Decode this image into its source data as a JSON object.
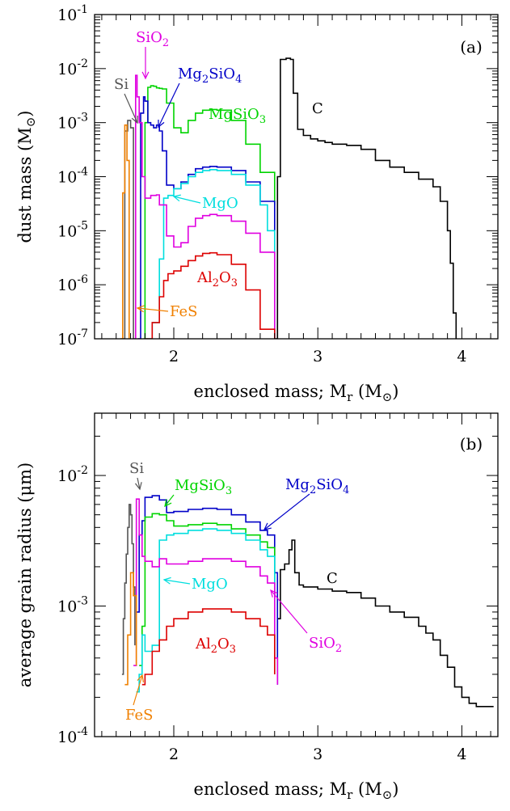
{
  "colors": {
    "Si": "#555555",
    "SiO2": "#e000e0",
    "Mg2SiO4": "#0000c8",
    "MgSiO3": "#00d400",
    "MgO": "#00dede",
    "Al2O3": "#dd0000",
    "FeS": "#f08000",
    "C": "#000000"
  },
  "chart_data": [
    {
      "type": "line",
      "panel_tag": "(a)",
      "xlabel": "enclosed mass; M_r (M_⊙)",
      "ylabel": "dust mass (M_⊙)",
      "xlim": [
        1.45,
        4.25
      ],
      "ylim": [
        1e-07,
        0.1
      ],
      "y_scale": "log",
      "x_ticks": [
        "2",
        "3",
        "4"
      ],
      "y_ticks": [
        "10^-7",
        "10^-6",
        "10^-5",
        "10^-4",
        "10^-3",
        "10^-2",
        "10^-1"
      ],
      "series": [
        {
          "name": "C",
          "x": [
            2.7,
            2.72,
            2.74,
            2.78,
            2.81,
            2.83,
            2.86,
            2.9,
            2.95,
            3.0,
            3.05,
            3.1,
            3.2,
            3.3,
            3.4,
            3.5,
            3.6,
            3.7,
            3.8,
            3.85,
            3.9,
            3.92,
            3.94,
            3.96
          ],
          "y": [
            1e-07,
            0.0001,
            0.0148,
            0.0155,
            0.0148,
            0.0035,
            0.00075,
            0.00058,
            0.0005,
            0.00046,
            0.00043,
            0.0004,
            0.00038,
            0.00032,
            0.0002,
            0.00015,
            0.00012,
            9e-05,
            6.5e-05,
            3.5e-05,
            1e-05,
            2.5e-06,
            3e-07,
            1e-07
          ]
        },
        {
          "name": "MgSiO3",
          "x": [
            1.79,
            1.8,
            1.82,
            1.84,
            1.86,
            1.88,
            1.9,
            1.92,
            1.95,
            2.0,
            2.05,
            2.1,
            2.15,
            2.2,
            2.25,
            2.3,
            2.4,
            2.5,
            2.6,
            2.7
          ],
          "y": [
            1e-07,
            0.001,
            0.0045,
            0.0048,
            0.0047,
            0.0044,
            0.0043,
            0.0042,
            0.0023,
            0.0008,
            0.00065,
            0.0011,
            0.0015,
            0.0017,
            0.00175,
            0.0017,
            0.0011,
            0.0004,
            0.00012,
            3e-05
          ]
        },
        {
          "name": "Mg2SiO4",
          "x": [
            1.75,
            1.77,
            1.79,
            1.8,
            1.82,
            1.84,
            1.86,
            1.88,
            1.9,
            1.92,
            1.95,
            2.0,
            2.05,
            2.1,
            2.15,
            2.2,
            2.25,
            2.3,
            2.4,
            2.5,
            2.6,
            2.7
          ],
          "y": [
            1e-07,
            0.0015,
            0.003,
            0.0025,
            0.001,
            0.0009,
            0.0008,
            0.0009,
            0.0007,
            0.0003,
            7e-05,
            6e-05,
            8e-05,
            0.00011,
            0.00014,
            0.00015,
            0.000155,
            0.00015,
            0.00013,
            8e-05,
            3.5e-05,
            1e-05
          ]
        },
        {
          "name": "MgO",
          "x": [
            1.8,
            1.85,
            1.9,
            1.93,
            1.96,
            2.0,
            2.05,
            2.1,
            2.15,
            2.2,
            2.25,
            2.3,
            2.4,
            2.5,
            2.6,
            2.65,
            2.7
          ],
          "y": [
            1e-07,
            2e-07,
            3e-06,
            4e-05,
            4.5e-05,
            6e-05,
            7.5e-05,
            0.0001,
            0.00012,
            0.00013,
            0.000135,
            0.00013,
            0.00011,
            7e-05,
            3e-05,
            1e-05,
            1e-07
          ]
        },
        {
          "name": "SiO2",
          "x": [
            1.72,
            1.735,
            1.745,
            1.76,
            1.78,
            1.8,
            1.84,
            1.88,
            1.9,
            1.95,
            2.0,
            2.05,
            2.1,
            2.15,
            2.2,
            2.25,
            2.3,
            2.4,
            2.5,
            2.6,
            2.7
          ],
          "y": [
            1e-07,
            0.0075,
            0.003,
            0.001,
            0.0001,
            4e-05,
            4.5e-05,
            4.6e-05,
            3e-05,
            8e-06,
            5e-06,
            6e-06,
            1.2e-05,
            1.7e-05,
            1.9e-05,
            2e-05,
            1.9e-05,
            1.5e-05,
            9e-06,
            4e-06,
            1e-07
          ]
        },
        {
          "name": "Al2O3",
          "x": [
            1.8,
            1.85,
            1.9,
            1.93,
            1.96,
            2.0,
            2.05,
            2.1,
            2.15,
            2.2,
            2.25,
            2.3,
            2.4,
            2.5,
            2.6,
            2.7
          ],
          "y": [
            1e-07,
            2e-07,
            6e-07,
            1.2e-06,
            1.6e-06,
            1.8e-06,
            2.2e-06,
            2.8e-06,
            3.4e-06,
            3.8e-06,
            3.9e-06,
            3.6e-06,
            2.4e-06,
            8e-07,
            1.5e-07,
            1e-07
          ]
        },
        {
          "name": "Si",
          "x": [
            1.64,
            1.66,
            1.68,
            1.7,
            1.72
          ],
          "y": [
            1e-07,
            0.0007,
            0.0011,
            0.0008,
            1e-07
          ]
        },
        {
          "name": "FeS",
          "x": [
            1.63,
            1.645,
            1.66,
            1.675,
            1.69
          ],
          "y": [
            1e-07,
            5e-05,
            0.0009,
            0.0002,
            1e-07
          ]
        }
      ]
    },
    {
      "type": "line",
      "panel_tag": "(b)",
      "xlabel": "enclosed mass; M_r (M_⊙)",
      "ylabel": "average grain radius (μm)",
      "xlim": [
        1.45,
        4.25
      ],
      "ylim": [
        0.0001,
        0.03
      ],
      "y_scale": "log",
      "x_ticks": [
        "2",
        "3",
        "4"
      ],
      "y_ticks": [
        "10^-4",
        "10^-3",
        "10^-2"
      ],
      "series": [
        {
          "name": "C",
          "x": [
            2.72,
            2.74,
            2.77,
            2.8,
            2.82,
            2.84,
            2.87,
            2.9,
            3.0,
            3.1,
            3.2,
            3.3,
            3.4,
            3.5,
            3.6,
            3.7,
            3.75,
            3.8,
            3.85,
            3.9,
            3.95,
            4.0,
            4.05,
            4.1,
            4.22
          ],
          "y": [
            0.0008,
            0.0019,
            0.0021,
            0.0027,
            0.0032,
            0.0018,
            0.00145,
            0.0014,
            0.00135,
            0.0013,
            0.00127,
            0.00115,
            0.001,
            0.0009,
            0.00082,
            0.0007,
            0.00062,
            0.00055,
            0.00042,
            0.00034,
            0.00024,
            0.0002,
            0.00018,
            0.00017,
            0.00017
          ]
        },
        {
          "name": "Mg2SiO4",
          "x": [
            1.74,
            1.76,
            1.78,
            1.8,
            1.85,
            1.9,
            1.95,
            2.0,
            2.1,
            2.2,
            2.3,
            2.4,
            2.5,
            2.6,
            2.65,
            2.7,
            2.72
          ],
          "y": [
            0.0009,
            0.0035,
            0.0045,
            0.0068,
            0.007,
            0.0065,
            0.0052,
            0.0053,
            0.0055,
            0.0056,
            0.0055,
            0.005,
            0.0044,
            0.0038,
            0.0035,
            0.0018,
            0.00025
          ]
        },
        {
          "name": "MgSiO3",
          "x": [
            1.76,
            1.78,
            1.8,
            1.85,
            1.9,
            1.95,
            2.0,
            2.1,
            2.2,
            2.3,
            2.4,
            2.5,
            2.6,
            2.65,
            2.7
          ],
          "y": [
            0.00035,
            0.0007,
            0.0048,
            0.0051,
            0.005,
            0.0045,
            0.0041,
            0.0042,
            0.0043,
            0.0042,
            0.0039,
            0.0035,
            0.0031,
            0.0028,
            0.0012
          ]
        },
        {
          "name": "MgO",
          "x": [
            1.74,
            1.76,
            1.78,
            1.8,
            1.85,
            1.9,
            1.95,
            2.0,
            2.1,
            2.2,
            2.3,
            2.4,
            2.5,
            2.6,
            2.65,
            2.7
          ],
          "y": [
            0.00022,
            0.0003,
            0.0006,
            0.00045,
            0.0005,
            0.0032,
            0.0035,
            0.0036,
            0.0038,
            0.0039,
            0.0038,
            0.0036,
            0.0032,
            0.0027,
            0.0024,
            0.0003
          ]
        },
        {
          "name": "SiO2",
          "x": [
            1.72,
            1.74,
            1.76,
            1.78,
            1.8,
            1.85,
            1.9,
            1.95,
            2.0,
            2.1,
            2.2,
            2.3,
            2.4,
            2.5,
            2.6,
            2.65,
            2.7,
            2.72
          ],
          "y": [
            0.00035,
            0.0066,
            0.0035,
            0.0024,
            0.0022,
            0.002,
            0.0023,
            0.0021,
            0.0021,
            0.0022,
            0.0023,
            0.0023,
            0.0022,
            0.002,
            0.0017,
            0.0015,
            0.0004,
            0.00025
          ]
        },
        {
          "name": "Al2O3",
          "x": [
            1.78,
            1.8,
            1.85,
            1.9,
            1.95,
            2.0,
            2.1,
            2.2,
            2.3,
            2.4,
            2.5,
            2.6,
            2.65,
            2.7
          ],
          "y": [
            0.00025,
            0.0003,
            0.00045,
            0.00055,
            0.0007,
            0.0008,
            0.0009,
            0.00095,
            0.00095,
            0.0009,
            0.0008,
            0.0007,
            0.0006,
            0.0003
          ]
        },
        {
          "name": "Si",
          "x": [
            1.64,
            1.65,
            1.66,
            1.67,
            1.68,
            1.69,
            1.7,
            1.71,
            1.72,
            1.73
          ],
          "y": [
            0.0003,
            0.0008,
            0.0015,
            0.0025,
            0.004,
            0.006,
            0.005,
            0.003,
            0.0014,
            0.0005
          ]
        },
        {
          "name": "FeS",
          "x": [
            1.66,
            1.68,
            1.7,
            1.72,
            1.74
          ],
          "y": [
            0.00025,
            0.0006,
            0.0018,
            0.0012,
            0.00035
          ]
        }
      ]
    }
  ]
}
